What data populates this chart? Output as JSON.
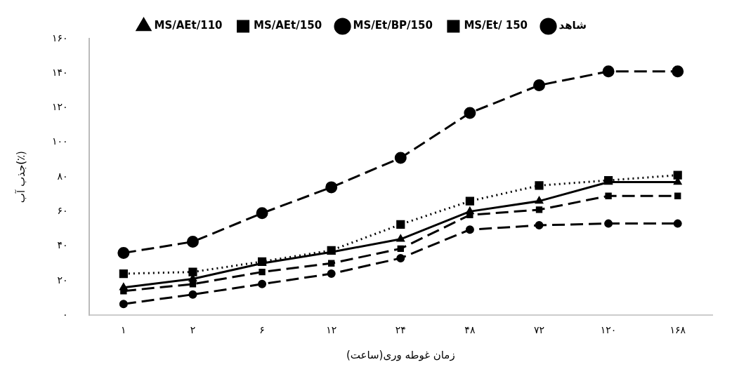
{
  "chart_data": {
    "type": "line",
    "xlabel": "زمان غوطه وری(ساعت)",
    "ylabel": "جذب آب(٪)",
    "categories": [
      "۱",
      "۲",
      "۶",
      "۱۲",
      "۲۴",
      "۴۸",
      "۷۲",
      "۱۲۰",
      "۱۶۸"
    ],
    "series": [
      {
        "name": "MS/AEt/110",
        "color": "#000000",
        "marker": "triangle",
        "line_style": "solid",
        "values": [
          16,
          21,
          30,
          36.5,
          44,
          60,
          66,
          77,
          77
        ]
      },
      {
        "name": "MS/AEt/150",
        "color": "#000000",
        "marker": "square",
        "line_style": "dashed",
        "values": [
          14,
          18,
          25,
          30,
          38.5,
          58,
          61,
          69,
          69
        ]
      },
      {
        "name": "MS/Et/BP/150",
        "color": "#000000",
        "marker": "circle",
        "line_style": "dashed",
        "values": [
          6.5,
          12,
          18,
          24,
          33,
          49.5,
          52,
          53,
          53
        ]
      },
      {
        "name": "MS/Et/ 150",
        "color": "#000000",
        "marker": "square",
        "line_style": "dotted",
        "values": [
          24,
          25,
          31,
          37.5,
          52.5,
          66,
          75,
          78,
          81
        ]
      },
      {
        "name": "شاهد",
        "color": "#000000",
        "marker": "circle",
        "line_style": "dashed",
        "values": [
          36,
          42.5,
          59,
          74,
          91,
          117,
          133,
          141,
          141
        ]
      }
    ],
    "ylim": [
      0,
      160
    ],
    "yticks": [
      {
        "value": 0,
        "label": "۰"
      },
      {
        "value": 20,
        "label": "۲۰"
      },
      {
        "value": 40,
        "label": "۴۰"
      },
      {
        "value": 60,
        "label": "۶۰"
      },
      {
        "value": 80,
        "label": "۸۰"
      },
      {
        "value": 100,
        "label": "۱۰۰"
      },
      {
        "value": 120,
        "label": "۱۲۰"
      },
      {
        "value": 140,
        "label": "۱۴۰"
      },
      {
        "value": 160,
        "label": "۱۶۰"
      }
    ],
    "grid": false,
    "legend": "top"
  }
}
